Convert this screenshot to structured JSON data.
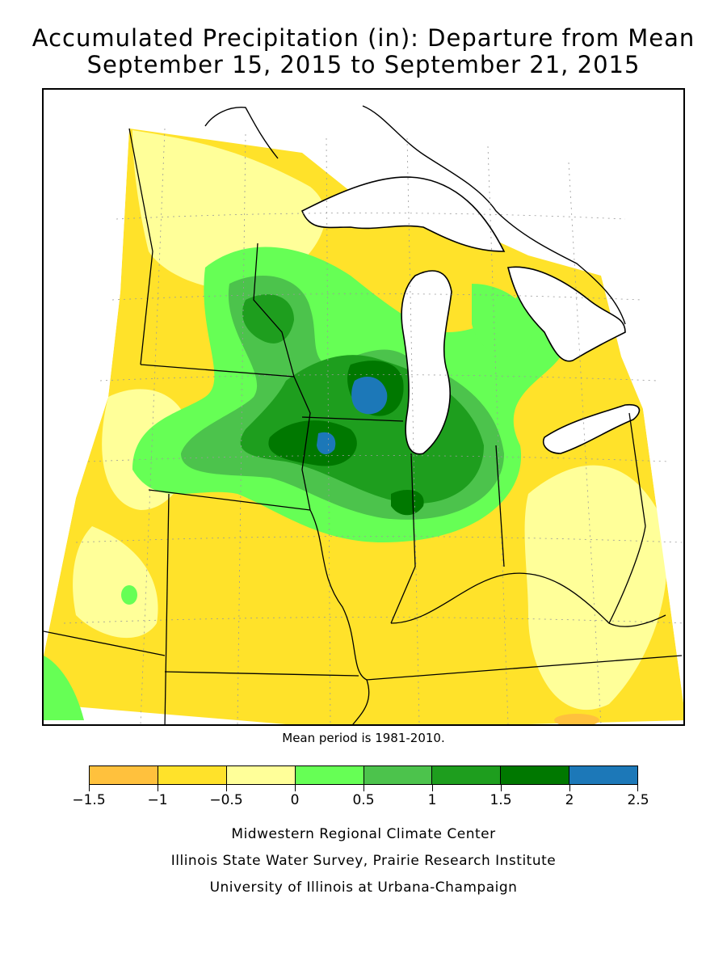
{
  "title": {
    "line1": "Accumulated Precipitation (in): Departure from Mean",
    "line2": "September 15, 2015 to September 21, 2015"
  },
  "map": {
    "region": "Midwest United States",
    "colors": {
      "lake": "#ffffff",
      "outside": "#ffffff",
      "border": "#000000",
      "grid": "#9a9a9a"
    },
    "note": "Mean period is 1981-2010."
  },
  "legend": {
    "bins": [
      {
        "range": "-1.5 to -1",
        "color": "#ffc13d"
      },
      {
        "range": "-1 to -0.5",
        "color": "#ffe22a"
      },
      {
        "range": "-0.5 to 0",
        "color": "#ffff99"
      },
      {
        "range": "0 to 0.5",
        "color": "#66ff55"
      },
      {
        "range": "0.5 to 1",
        "color": "#4cc34c"
      },
      {
        "range": "1 to 1.5",
        "color": "#1e9e1e"
      },
      {
        "range": "1.5 to 2",
        "color": "#007800"
      },
      {
        "range": "2 to 2.5",
        "color": "#1c78b8"
      }
    ],
    "ticks": [
      "−1.5",
      "−1",
      "−0.5",
      "0",
      "0.5",
      "1",
      "1.5",
      "2",
      "2.5"
    ]
  },
  "credits": [
    "Midwestern Regional Climate Center",
    "Illinois State Water Survey, Prairie Research Institute",
    "University of Illinois at Urbana-Champaign"
  ]
}
